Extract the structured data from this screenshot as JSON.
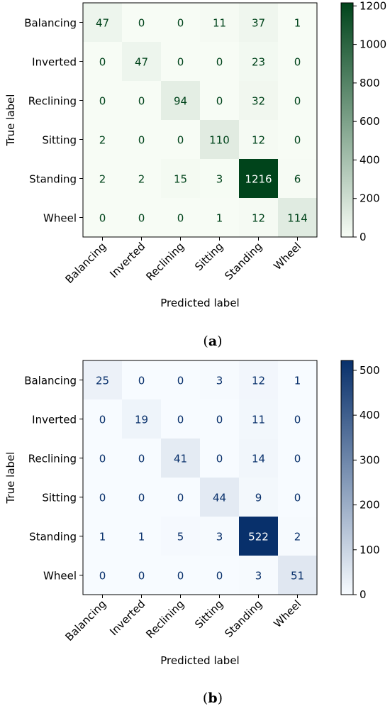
{
  "chart_data": [
    {
      "type": "heatmap",
      "panel_label": "a",
      "xlabel": "Predicted label",
      "ylabel": "True label",
      "x_categories": [
        "Balancing",
        "Inverted",
        "Reclining",
        "Sitting",
        "Standing",
        "Wheel"
      ],
      "y_categories": [
        "Balancing",
        "Inverted",
        "Reclining",
        "Sitting",
        "Standing",
        "Wheel"
      ],
      "values": [
        [
          47,
          0,
          0,
          11,
          37,
          1
        ],
        [
          0,
          47,
          0,
          0,
          23,
          0
        ],
        [
          0,
          0,
          94,
          0,
          32,
          0
        ],
        [
          2,
          0,
          0,
          110,
          12,
          0
        ],
        [
          2,
          2,
          15,
          3,
          1216,
          6
        ],
        [
          0,
          0,
          0,
          1,
          12,
          114
        ]
      ],
      "colormap": "Greens",
      "color_low": "#f7fcf5",
      "color_high": "#00441b",
      "colorbar_range": [
        0,
        1216
      ],
      "colorbar_ticks": [
        0,
        200,
        400,
        600,
        800,
        1000,
        1200
      ]
    },
    {
      "type": "heatmap",
      "panel_label": "b",
      "xlabel": "Predicted label",
      "ylabel": "True label",
      "x_categories": [
        "Balancing",
        "Inverted",
        "Reclining",
        "Sitting",
        "Standing",
        "Wheel"
      ],
      "y_categories": [
        "Balancing",
        "Inverted",
        "Reclining",
        "Sitting",
        "Standing",
        "Wheel"
      ],
      "values": [
        [
          25,
          0,
          0,
          3,
          12,
          1
        ],
        [
          0,
          19,
          0,
          0,
          11,
          0
        ],
        [
          0,
          0,
          41,
          0,
          14,
          0
        ],
        [
          0,
          0,
          0,
          44,
          9,
          0
        ],
        [
          1,
          1,
          5,
          3,
          522,
          2
        ],
        [
          0,
          0,
          0,
          0,
          3,
          51
        ]
      ],
      "colormap": "Blues",
      "color_low": "#f7fbff",
      "color_high": "#08306b",
      "colorbar_range": [
        0,
        522
      ],
      "colorbar_ticks": [
        0,
        100,
        200,
        300,
        400,
        500
      ]
    }
  ]
}
